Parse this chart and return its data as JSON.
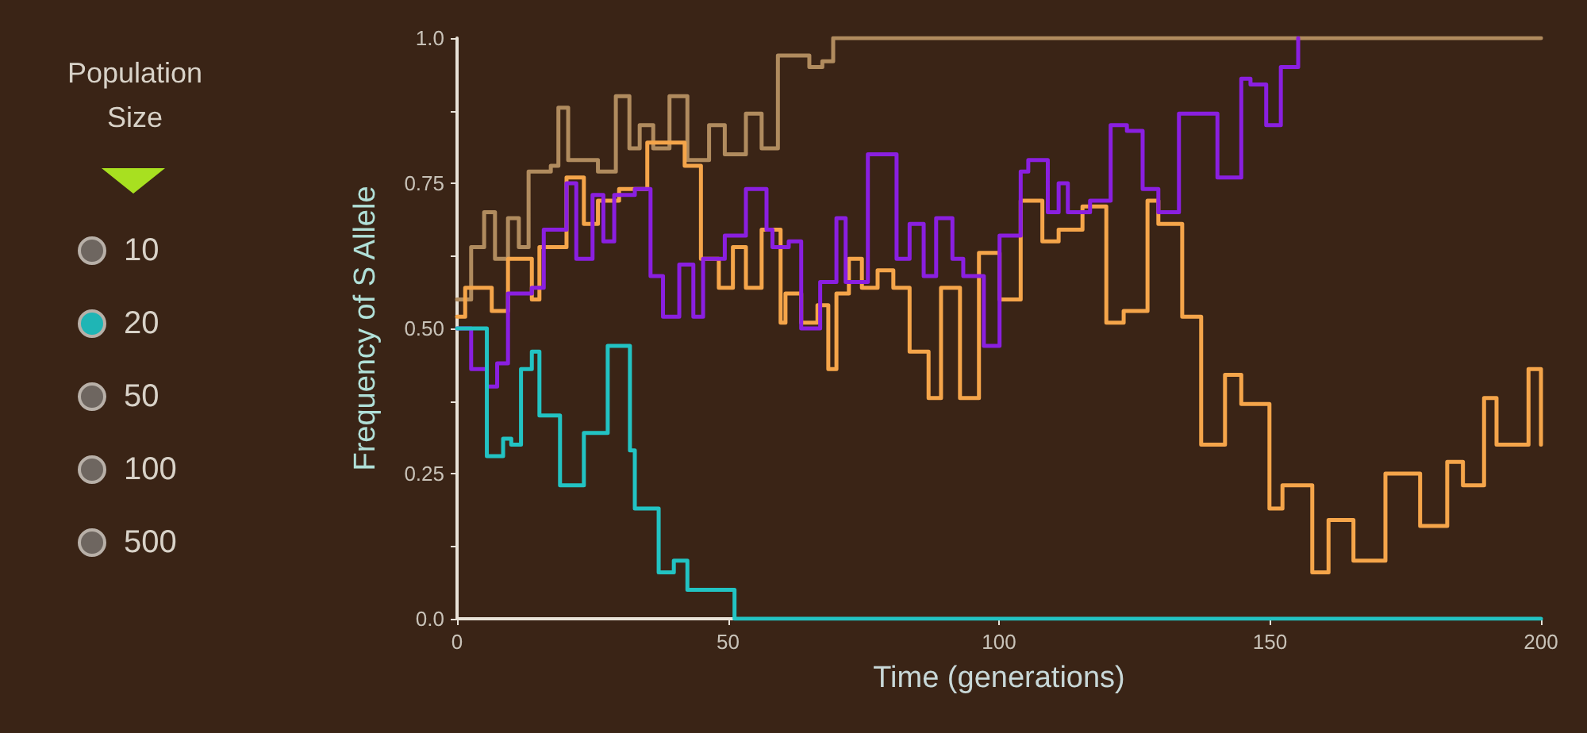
{
  "chart_data": [
    {
      "type": "other",
      "title": "Population Size",
      "categories": [
        "10",
        "20",
        "50",
        "100",
        "500"
      ],
      "colors": [
        "#6e6660",
        "#1fb5b5",
        "#6e6660",
        "#6e6660",
        "#6e6660"
      ]
    },
    {
      "type": "step",
      "xlabel": "Time (generations)",
      "ylabel": "Frequency of S Allele",
      "xlim": [
        0,
        200
      ],
      "xticks": [
        0,
        50,
        100,
        150,
        200
      ],
      "ylim": [
        0,
        1
      ],
      "yticks": [
        {
          "value": 0,
          "label": "0.0"
        },
        {
          "value": 0.125,
          "label": null
        },
        0.25,
        {
          "value": 0.375,
          "label": null
        },
        {
          "value": 0.5,
          "label": "0.50"
        },
        {
          "value": 0.625,
          "label": null
        },
        0.75,
        {
          "value": 0.875,
          "label": null
        },
        {
          "value": 1,
          "label": "1.0"
        }
      ],
      "grid": false,
      "marker": "none",
      "line_style": "solid",
      "series": [
        {
          "color": "#b08b5e",
          "x": [
            0,
            2.6,
            5,
            7,
            9.4,
            11.4,
            13.2,
            17.3,
            18.7,
            20.5,
            26,
            29.3,
            31.8,
            33.7,
            36.2,
            39.2,
            42.5,
            46.5,
            49.4,
            53.3,
            56.2,
            59.2,
            64,
            65,
            67.4,
            69.4,
            200
          ],
          "values": [
            0.55,
            0.64,
            0.7,
            0.62,
            0.69,
            0.64,
            0.77,
            0.78,
            0.88,
            0.79,
            0.77,
            0.9,
            0.81,
            0.85,
            0.81,
            0.9,
            0.79,
            0.85,
            0.8,
            0.87,
            0.81,
            0.97,
            0.97,
            0.95,
            0.96,
            1,
            1
          ]
        },
        {
          "color": "#f5a54a",
          "x": [
            0,
            1.5,
            6.4,
            9.4,
            13.8,
            15.2,
            20.2,
            23.4,
            26,
            29.9,
            35.1,
            39.5,
            42,
            45,
            48.3,
            50.9,
            53.3,
            56.2,
            59.7,
            60.6,
            63.5,
            66.5,
            68.5,
            70,
            72.3,
            74.7,
            77.6,
            80.5,
            83.5,
            87,
            89.3,
            92.8,
            96.3,
            100.1,
            104,
            108,
            111,
            115.4,
            119.8,
            123,
            127.4,
            129.4,
            133.8,
            137.3,
            141.7,
            144.7,
            149.9,
            152.3,
            157.8,
            160.8,
            165.4,
            171.3,
            177.7,
            182.7,
            185.6,
            189.5,
            191.8,
            197.7,
            200
          ],
          "values": [
            0.52,
            0.57,
            0.53,
            0.62,
            0.55,
            0.64,
            0.76,
            0.68,
            0.72,
            0.74,
            0.82,
            0.82,
            0.78,
            0.62,
            0.57,
            0.64,
            0.57,
            0.67,
            0.51,
            0.56,
            0.51,
            0.54,
            0.43,
            0.56,
            0.62,
            0.57,
            0.6,
            0.57,
            0.46,
            0.38,
            0.57,
            0.38,
            0.63,
            0.55,
            0.72,
            0.65,
            0.67,
            0.71,
            0.51,
            0.53,
            0.72,
            0.68,
            0.52,
            0.3,
            0.42,
            0.37,
            0.19,
            0.23,
            0.08,
            0.17,
            0.1,
            0.25,
            0.16,
            0.27,
            0.23,
            0.38,
            0.3,
            0.43,
            0.3
          ]
        },
        {
          "color": "#8a1fe0",
          "x": [
            0,
            2.6,
            5.5,
            7.4,
            9.4,
            13.8,
            16,
            20.2,
            22,
            25,
            27,
            29,
            32.8,
            35.7,
            38,
            41,
            43.6,
            45.4,
            49.4,
            53.3,
            57.1,
            58.2,
            61.2,
            63.5,
            67,
            70,
            71.7,
            75.8,
            78.8,
            81.1,
            83.5,
            86.1,
            88.4,
            91.4,
            93.4,
            97.2,
            100.1,
            104,
            105.4,
            109,
            111,
            112.7,
            116.8,
            120.6,
            123.6,
            126.5,
            129.4,
            133.2,
            136.2,
            140.3,
            144.7,
            146.4,
            149.3,
            152,
            155.2
          ],
          "values": [
            0.5,
            0.43,
            0.4,
            0.44,
            0.56,
            0.57,
            0.67,
            0.75,
            0.62,
            0.73,
            0.65,
            0.73,
            0.74,
            0.59,
            0.52,
            0.61,
            0.52,
            0.62,
            0.66,
            0.74,
            0.67,
            0.64,
            0.65,
            0.5,
            0.58,
            0.69,
            0.58,
            0.8,
            0.8,
            0.62,
            0.68,
            0.59,
            0.69,
            0.62,
            0.59,
            0.47,
            0.66,
            0.77,
            0.79,
            0.7,
            0.75,
            0.7,
            0.72,
            0.85,
            0.84,
            0.74,
            0.7,
            0.87,
            0.87,
            0.76,
            0.93,
            0.92,
            0.85,
            0.95,
            1
          ]
        },
        {
          "color": "#22c3c3",
          "x": [
            0,
            5.5,
            8.5,
            10,
            11.8,
            13.8,
            15.2,
            19,
            23.4,
            27.8,
            31.9,
            32.8,
            37.2,
            40,
            42.5,
            47.4,
            51.2,
            200
          ],
          "values": [
            0.5,
            0.28,
            0.31,
            0.3,
            0.43,
            0.46,
            0.35,
            0.23,
            0.32,
            0.47,
            0.29,
            0.19,
            0.08,
            0.1,
            0.05,
            0.05,
            0,
            0
          ]
        }
      ]
    }
  ]
}
